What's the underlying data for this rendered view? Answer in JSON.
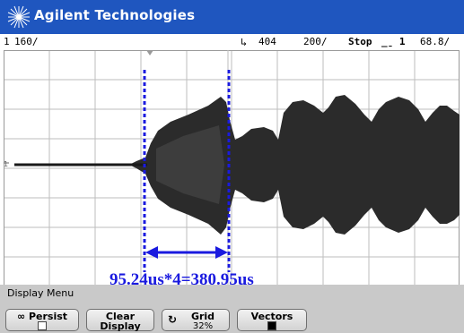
{
  "app": {
    "brand": "Agilent Technologies"
  },
  "status": {
    "channel": "1",
    "channel_scale": "160∕",
    "trigger_mark": "↳",
    "time_delay": "404",
    "time_scale": "200∕",
    "run_state": "Stop",
    "trigger_source": "̲̱ 1",
    "trigger_level": "68.8∕"
  },
  "annotation": {
    "measurement": "95.24us*4=380.95us",
    "color": "#1a1adf"
  },
  "menu": {
    "title": "Display Menu",
    "keys": [
      {
        "label": "∞ Persist",
        "state": "unchecked"
      },
      {
        "label": "Clear",
        "sub": "Display"
      },
      {
        "label": "Grid",
        "value": "32%",
        "icon": "rotate-knob-icon"
      },
      {
        "label": "Vectors",
        "state": "checked"
      }
    ]
  },
  "colors": {
    "titlebar": "#1f56bf",
    "screen_bg": "#ffffff",
    "grid": "#bdbdbd",
    "trace": "#2a2a2a",
    "panel": "#c9c9c9"
  }
}
